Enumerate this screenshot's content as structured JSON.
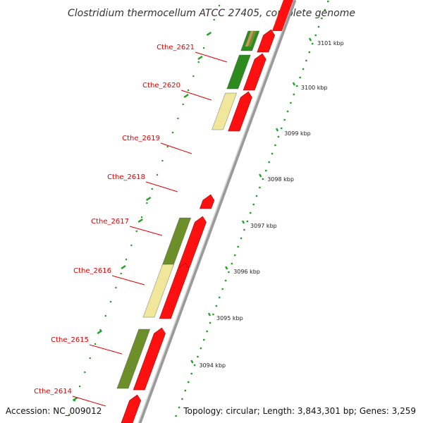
{
  "title": "Clostridium thermocellum ATCC 27405, complete genome",
  "footer": {
    "accession": "Accession: NC_009012",
    "topology": "Topology: circular; Length: 3,843,301 bp; Genes: 3,259"
  },
  "colors": {
    "label": "#e00000",
    "backbone": "#9a9a9a",
    "tick": "#22a022",
    "cds_red": "#ff1010",
    "cog_green": "#2c8a1e",
    "cog_olive": "#6c8f2a",
    "cog_yellow": "#f0e79a",
    "cog_brown": "#c8945a"
  },
  "ticks": [
    {
      "label": "3101 kbp"
    },
    {
      "label": "3100 kbp"
    },
    {
      "label": "3099 kbp"
    },
    {
      "label": "3098 kbp"
    },
    {
      "label": "3097 kbp"
    },
    {
      "label": "3096 kbp"
    },
    {
      "label": "3095 kbp"
    },
    {
      "label": "3094 kbp"
    }
  ],
  "genes": [
    {
      "name": "Cthe_2621",
      "cog_color": "cog_green"
    },
    {
      "name": "Cthe_2620",
      "cog_color": "cog_green"
    },
    {
      "name": "Cthe_2619",
      "cog_color": "cog_yellow"
    },
    {
      "name": "Cthe_2618",
      "cog_color": ""
    },
    {
      "name": "Cthe_2617",
      "cog_color": "cog_olive"
    },
    {
      "name": "Cthe_2616",
      "cog_color": "cog_yellow"
    },
    {
      "name": "Cthe_2615",
      "cog_color": "cog_olive"
    },
    {
      "name": "Cthe_2614",
      "cog_color": ""
    }
  ]
}
